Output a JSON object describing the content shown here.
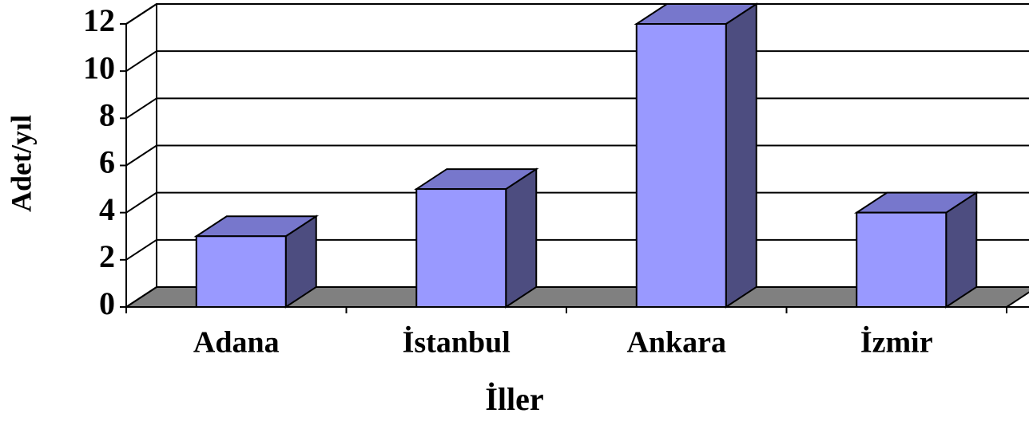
{
  "chart_data": {
    "type": "bar3d",
    "x_label": "İller",
    "y_label": "Adet/yıl",
    "categories": [
      "Adana",
      "İstanbul",
      "Ankara",
      "İzmir"
    ],
    "values": [
      3,
      5,
      12,
      4
    ],
    "color": "#9999ff",
    "ylim": [
      0,
      12
    ],
    "yticks": [
      0,
      2,
      4,
      6,
      8,
      10,
      12
    ],
    "grid": true
  }
}
